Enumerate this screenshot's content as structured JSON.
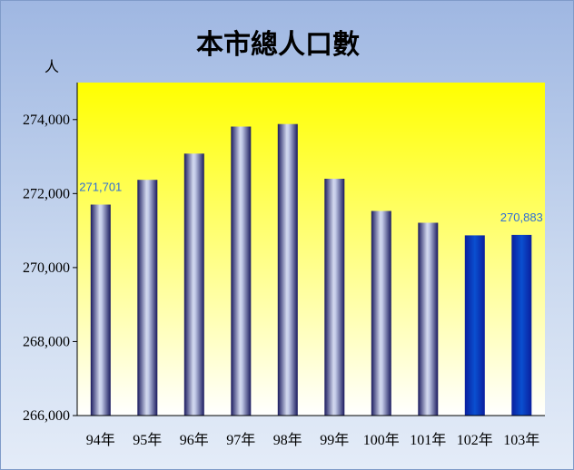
{
  "chart_data": {
    "type": "bar",
    "title": "本市總人口數",
    "ylabel": "人",
    "categories": [
      "94年",
      "95年",
      "96年",
      "97年",
      "98年",
      "99年",
      "100年",
      "101年",
      "102年",
      "103年"
    ],
    "values": [
      271701,
      272370,
      273080,
      273810,
      273880,
      272400,
      271530,
      271210,
      270870,
      270883
    ],
    "data_labels": [
      {
        "index": 0,
        "text": "271,701"
      },
      {
        "index": 9,
        "text": "270,883"
      }
    ],
    "ylim": [
      266000,
      275000
    ],
    "yticks": [
      266000,
      268000,
      270000,
      272000,
      274000
    ],
    "ytick_labels": [
      "266,000",
      "268,000",
      "270,000",
      "272,000",
      "274,000"
    ],
    "grid": false,
    "legend": "none",
    "colors": {
      "plot_top": "#ffff00",
      "plot_bottom": "#ffffff",
      "bar_dark": "#1a1a5e",
      "bar_light": "#d2d8ee",
      "bar_highlight_dark": "#0a1f9e",
      "bar_highlight_light": "#0a4fd0",
      "label_color": "#2f6fd6"
    },
    "highlight_indices": [
      8,
      9
    ]
  }
}
